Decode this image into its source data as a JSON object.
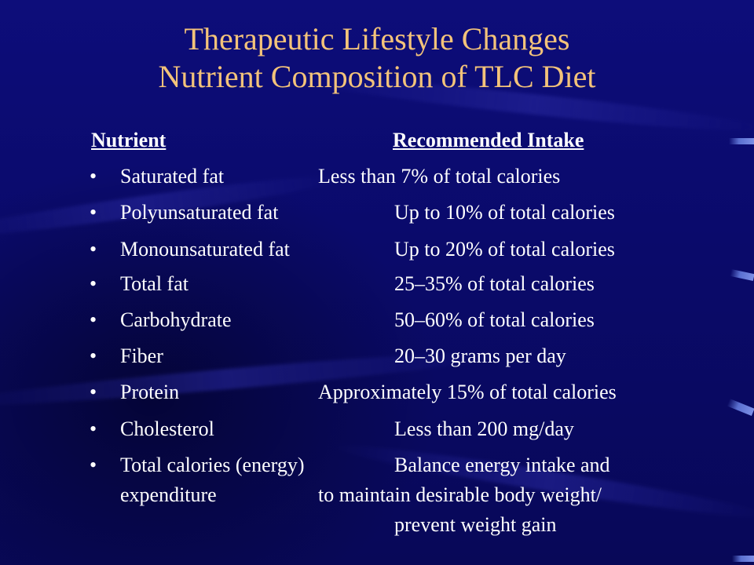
{
  "slide": {
    "title_line1": "Therapeutic Lifestyle Changes",
    "title_line2": "Nutrient Composition of TLC Diet",
    "colors": {
      "background": "#0a0a6e",
      "title": "#f3c37a",
      "body_text": "#ffffff"
    },
    "header": {
      "nutrient": "Nutrient",
      "intake": "Recommended Intake"
    },
    "bullet_char": "•",
    "rows": [
      {
        "nutrient": "Saturated fat",
        "intake": "Less than 7% of total calories"
      },
      {
        "nutrient": "Polyunsaturated fat",
        "intake": "Up to 10% of total calories"
      },
      {
        "nutrient": "Monounsaturated fat",
        "intake": "Up to 20% of total calories"
      },
      {
        "nutrient": "Total fat",
        "intake": "25–35% of total calories"
      },
      {
        "nutrient": "Carbohydrate",
        "intake": "50–60% of total calories"
      },
      {
        "nutrient": "Fiber",
        "intake": "20–30 grams per day"
      },
      {
        "nutrient": "Protein",
        "intake": "Approximately 15% of total calories"
      },
      {
        "nutrient": "Cholesterol",
        "intake": "Less than 200 mg/day"
      },
      {
        "nutrient": "Total calories (energy)",
        "intake": "Balance energy intake and",
        "nutrient_cont": "expenditure",
        "intake_cont1": "to maintain desirable body weight/",
        "intake_cont2": "prevent weight gain"
      }
    ]
  }
}
